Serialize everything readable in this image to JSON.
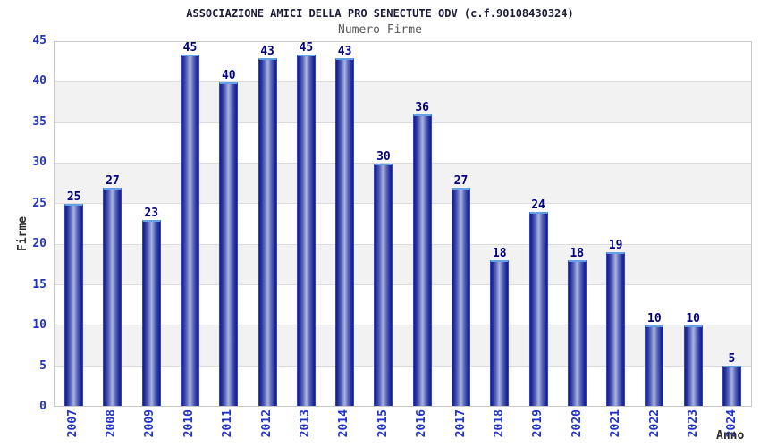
{
  "chart_data": {
    "type": "bar",
    "title": "ASSOCIAZIONE AMICI DELLA PRO SENECTUTE ODV (c.f.90108430324)",
    "subtitle": "Numero Firme",
    "xlabel": "Anno",
    "ylabel": "Firme",
    "categories": [
      "2007",
      "2008",
      "2009",
      "2010",
      "2011",
      "2012",
      "2013",
      "2014",
      "2015",
      "2016",
      "2017",
      "2018",
      "2019",
      "2020",
      "2021",
      "2022",
      "2023",
      "2024"
    ],
    "values": [
      25,
      27,
      23,
      45,
      40,
      43,
      45,
      43,
      30,
      36,
      27,
      18,
      24,
      18,
      19,
      10,
      10,
      5
    ],
    "ylim": [
      0,
      45
    ],
    "ytick_step": 5,
    "grid": "horizontal-bands-alternating",
    "legend": "none",
    "colors": {
      "title_color": "#1b1b38",
      "subtitle_color": "#5a5a5a",
      "tick_label": "#2233cc",
      "value_label": "#00007d",
      "bar_edge": "#141e8c",
      "bar_center": "#a3aede",
      "bar_outline": "#3242cc",
      "bar_cap": "#64a0e6",
      "band_gray": "#f2f2f2",
      "grid_line": "#dcdcdc"
    }
  }
}
